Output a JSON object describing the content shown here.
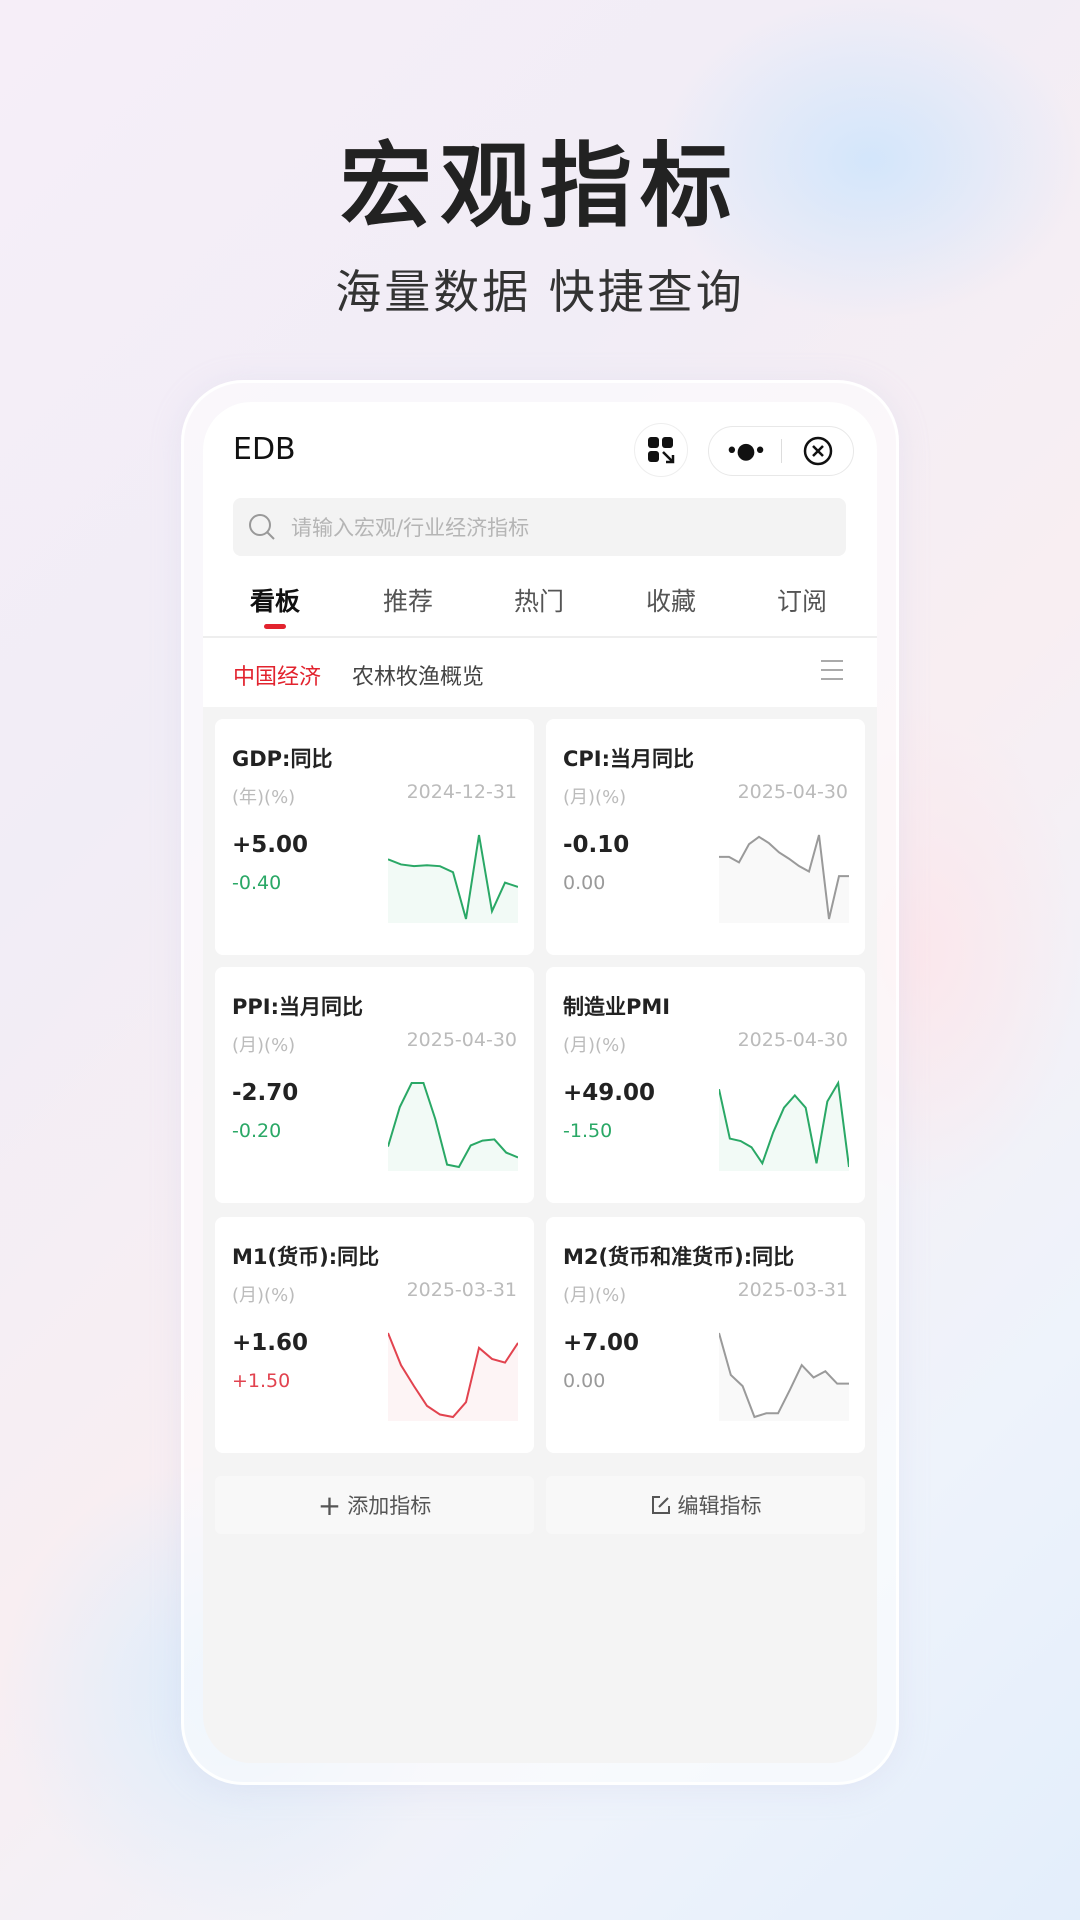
{
  "hero": {
    "title": "宏观指标",
    "subtitle": "海量数据 快捷查询"
  },
  "app": {
    "title": "EDB",
    "more_label": "•●•"
  },
  "search": {
    "placeholder": "请输入宏观/行业经济指标"
  },
  "tabs": [
    {
      "label": "看板",
      "active": true
    },
    {
      "label": "推荐"
    },
    {
      "label": "热门"
    },
    {
      "label": "收藏"
    },
    {
      "label": "订阅"
    }
  ],
  "subtabs": [
    {
      "label": "中国经济",
      "active": true
    },
    {
      "label": "农林牧渔概览"
    }
  ],
  "colors": {
    "accent": "#e2232e",
    "up": "#e2434f",
    "down": "#2aa866",
    "neutral": "#9a9a9a"
  },
  "cards": [
    {
      "title": "GDP:同比",
      "unit": "(年)(%)",
      "date": "2024-12-31",
      "value": "+5.00",
      "change": "-0.40",
      "trend": "down",
      "sparkline": [
        72,
        66,
        64,
        65,
        64,
        57,
        3,
        100,
        12,
        45,
        40
      ]
    },
    {
      "title": "CPI:当月同比",
      "unit": "(月)(%)",
      "date": "2025-04-30",
      "value": "-0.10",
      "change": "0.00",
      "trend": "neutral",
      "sparkline": [
        68,
        68,
        62,
        82,
        90,
        83,
        73,
        66,
        58,
        52,
        92,
        0,
        47,
        47
      ]
    },
    {
      "title": "PPI:当月同比",
      "unit": "(月)(%)",
      "date": "2025-04-30",
      "value": "-2.70",
      "change": "-0.20",
      "trend": "down",
      "sparkline": [
        27,
        60,
        80,
        80,
        50,
        12,
        10,
        28,
        32,
        33,
        22,
        18
      ]
    },
    {
      "title": "制造业PMI",
      "unit": "(月)(%)",
      "date": "2025-04-30",
      "value": "+49.00",
      "change": "-1.50",
      "trend": "down",
      "sparkline": [
        75,
        35,
        33,
        28,
        15,
        40,
        60,
        70,
        60,
        15,
        65,
        80,
        12
      ]
    },
    {
      "title": "M1(货币):同比",
      "unit": "(月)(%)",
      "date": "2025-03-31",
      "value": "+1.60",
      "change": "+1.50",
      "trend": "up",
      "sparkline": [
        76,
        50,
        33,
        17,
        10,
        8,
        20,
        64,
        55,
        52,
        68
      ]
    },
    {
      "title": "M2(货币和准货币):同比",
      "unit": "(月)(%)",
      "date": "2025-03-31",
      "value": "+7.00",
      "change": "0.00",
      "trend": "neutral",
      "sparkline": [
        76,
        42,
        33,
        8,
        11,
        11,
        30,
        50,
        40,
        45,
        35,
        35
      ]
    }
  ],
  "actions": {
    "add_label": "添加指标",
    "edit_label": "编辑指标"
  }
}
